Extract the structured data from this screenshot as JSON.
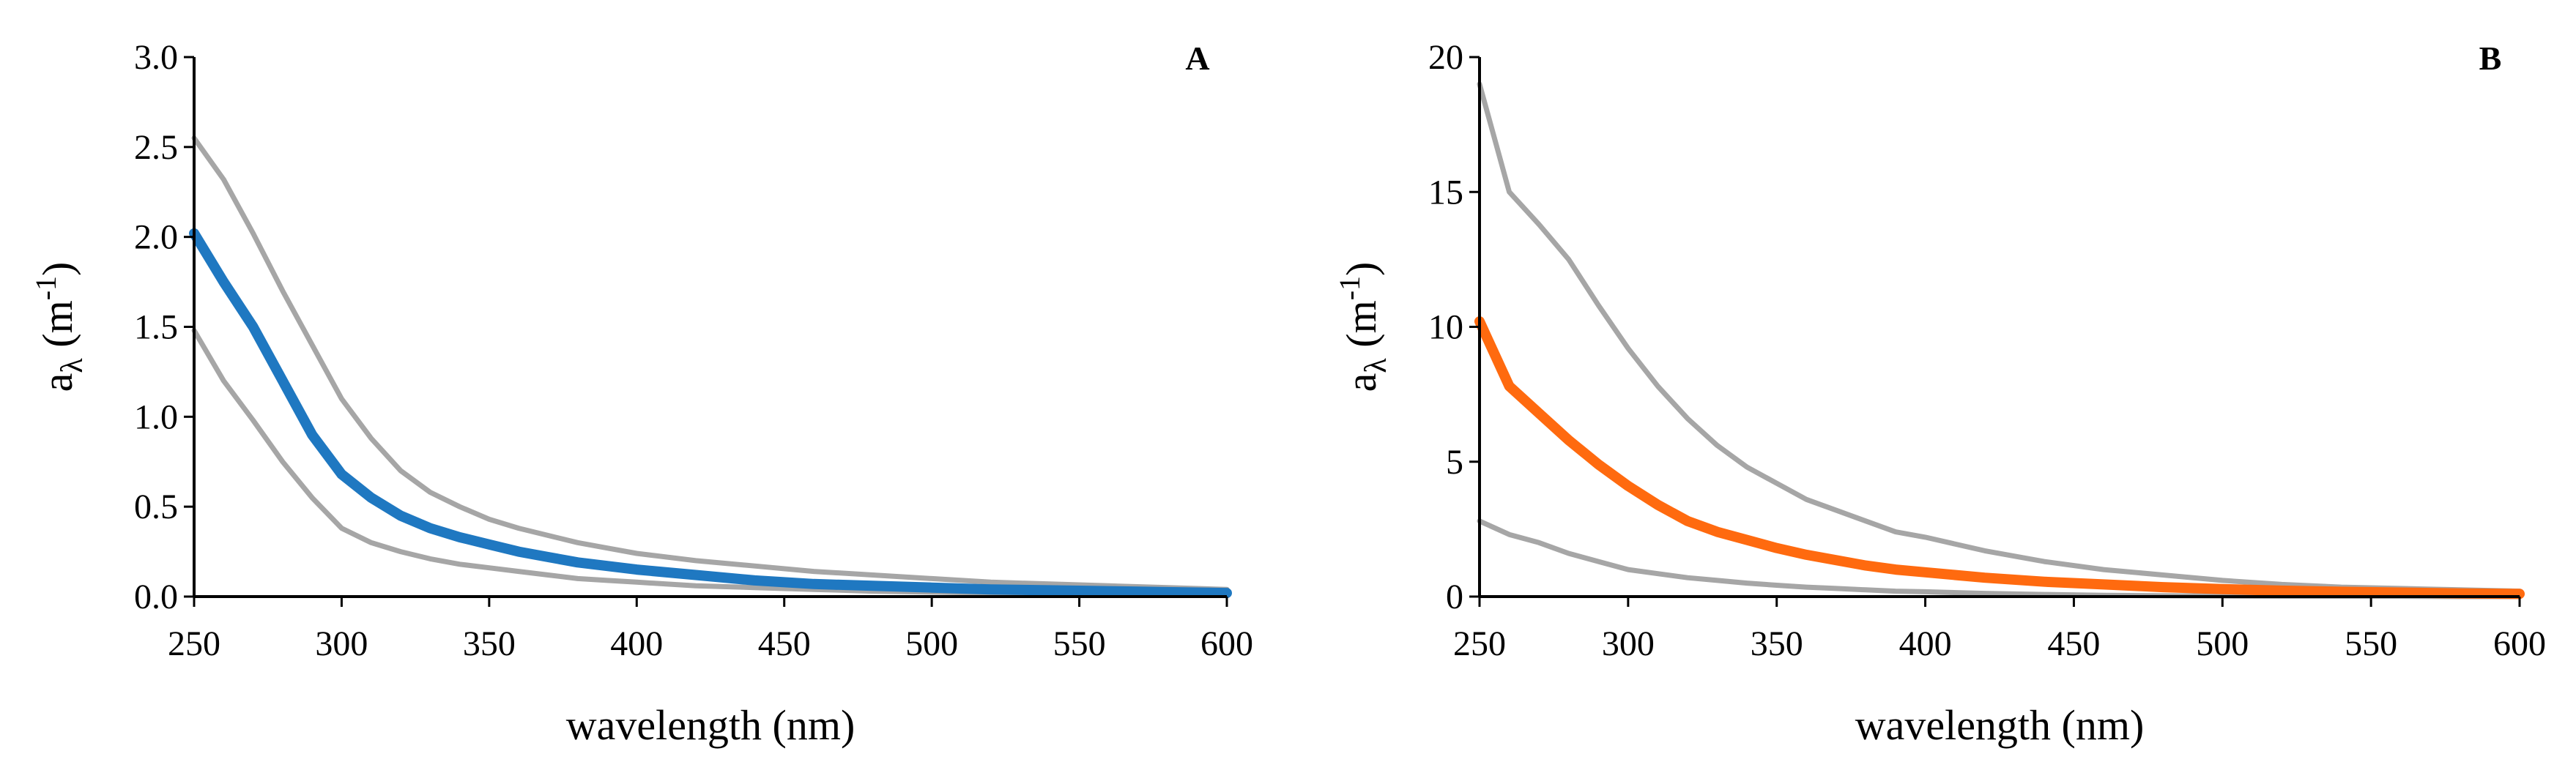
{
  "chart_data": [
    {
      "type": "line",
      "panel_label": "A",
      "title": "",
      "xlabel": "wavelength (nm)",
      "ylabel_main": "a",
      "ylabel_sub": "λ",
      "ylabel_unit_open": " (m",
      "ylabel_unit_sup": "-1",
      "ylabel_unit_close": ")",
      "xlim": [
        250,
        600
      ],
      "ylim": [
        0,
        3
      ],
      "xticks": [
        "250",
        "300",
        "350",
        "400",
        "450",
        "500",
        "550",
        "600"
      ],
      "yticks": [
        "0.0",
        "0.5",
        "1.0",
        "1.5",
        "2.0",
        "2.5",
        "3.0"
      ],
      "grid": false,
      "legend": "none",
      "x": [
        250,
        260,
        270,
        280,
        290,
        300,
        310,
        320,
        330,
        340,
        350,
        360,
        370,
        380,
        390,
        400,
        420,
        440,
        460,
        480,
        500,
        520,
        540,
        560,
        580,
        600
      ],
      "series": [
        {
          "role": "upper",
          "color": "#a6a6a6",
          "width": 7,
          "values": [
            2.55,
            2.32,
            2.02,
            1.7,
            1.4,
            1.1,
            0.88,
            0.7,
            0.58,
            0.5,
            0.43,
            0.38,
            0.34,
            0.3,
            0.27,
            0.24,
            0.2,
            0.17,
            0.14,
            0.12,
            0.1,
            0.08,
            0.07,
            0.06,
            0.05,
            0.04
          ]
        },
        {
          "role": "mean",
          "color": "#1f78c1",
          "width": 14,
          "values": [
            2.02,
            1.75,
            1.5,
            1.2,
            0.9,
            0.68,
            0.55,
            0.45,
            0.38,
            0.33,
            0.29,
            0.25,
            0.22,
            0.19,
            0.17,
            0.15,
            0.12,
            0.09,
            0.07,
            0.06,
            0.05,
            0.04,
            0.035,
            0.03,
            0.025,
            0.02
          ]
        },
        {
          "role": "lower",
          "color": "#a6a6a6",
          "width": 7,
          "values": [
            1.48,
            1.2,
            0.98,
            0.75,
            0.55,
            0.38,
            0.3,
            0.25,
            0.21,
            0.18,
            0.16,
            0.14,
            0.12,
            0.1,
            0.09,
            0.08,
            0.06,
            0.05,
            0.04,
            0.03,
            0.025,
            0.02,
            0.015,
            0.01,
            0.01,
            0.01
          ]
        }
      ]
    },
    {
      "type": "line",
      "panel_label": "B",
      "title": "",
      "xlabel": "wavelength (nm)",
      "ylabel_main": "a",
      "ylabel_sub": "λ",
      "ylabel_unit_open": " (m",
      "ylabel_unit_sup": "-1",
      "ylabel_unit_close": ")",
      "xlim": [
        250,
        600
      ],
      "ylim": [
        0,
        20
      ],
      "xticks": [
        "250",
        "300",
        "350",
        "400",
        "450",
        "500",
        "550",
        "600"
      ],
      "yticks": [
        "0",
        "5",
        "10",
        "15",
        "20"
      ],
      "grid": false,
      "legend": "none",
      "x": [
        250,
        260,
        270,
        280,
        290,
        300,
        310,
        320,
        330,
        340,
        350,
        360,
        370,
        380,
        390,
        400,
        420,
        440,
        460,
        480,
        500,
        520,
        540,
        560,
        580,
        600
      ],
      "series": [
        {
          "role": "upper",
          "color": "#a6a6a6",
          "width": 7,
          "values": [
            19,
            15,
            13.8,
            12.5,
            10.8,
            9.2,
            7.8,
            6.6,
            5.6,
            4.8,
            4.2,
            3.6,
            3.2,
            2.8,
            2.4,
            2.2,
            1.7,
            1.3,
            1.0,
            0.8,
            0.6,
            0.45,
            0.35,
            0.3,
            0.25,
            0.2
          ]
        },
        {
          "role": "mean",
          "color": "#ff6a0f",
          "width": 14,
          "values": [
            10.2,
            7.8,
            6.8,
            5.8,
            4.9,
            4.1,
            3.4,
            2.8,
            2.4,
            2.1,
            1.8,
            1.55,
            1.35,
            1.15,
            1.0,
            0.9,
            0.7,
            0.55,
            0.45,
            0.35,
            0.28,
            0.22,
            0.18,
            0.15,
            0.12,
            0.1
          ]
        },
        {
          "role": "lower",
          "color": "#a6a6a6",
          "width": 7,
          "values": [
            2.8,
            2.3,
            2.0,
            1.6,
            1.3,
            1.0,
            0.85,
            0.7,
            0.6,
            0.5,
            0.42,
            0.35,
            0.3,
            0.25,
            0.2,
            0.18,
            0.12,
            0.08,
            0.05,
            0.03,
            0.02,
            0.01,
            0.01,
            0.01,
            0.0,
            0.0
          ]
        }
      ]
    }
  ]
}
